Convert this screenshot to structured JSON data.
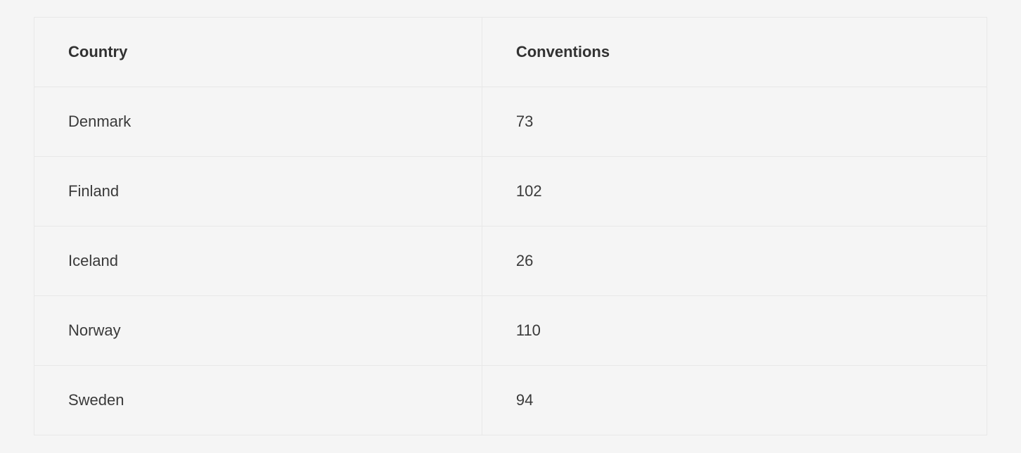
{
  "table": {
    "type": "table",
    "columns": [
      "Country",
      "Conventions"
    ],
    "column_widths": [
      "47%",
      "53%"
    ],
    "rows": [
      [
        "Denmark",
        "73"
      ],
      [
        "Finland",
        "102"
      ],
      [
        "Iceland",
        "26"
      ],
      [
        "Norway",
        "110"
      ],
      [
        "Sweden",
        "94"
      ]
    ],
    "background_color": "#f5f5f5",
    "border_color": "#e8e8e8",
    "header_text_color": "#323232",
    "cell_text_color": "#3a3a3a",
    "header_font_weight": 600,
    "cell_font_weight": 400,
    "font_size": 22,
    "cell_padding_vertical": 36,
    "cell_padding_horizontal": 48
  }
}
